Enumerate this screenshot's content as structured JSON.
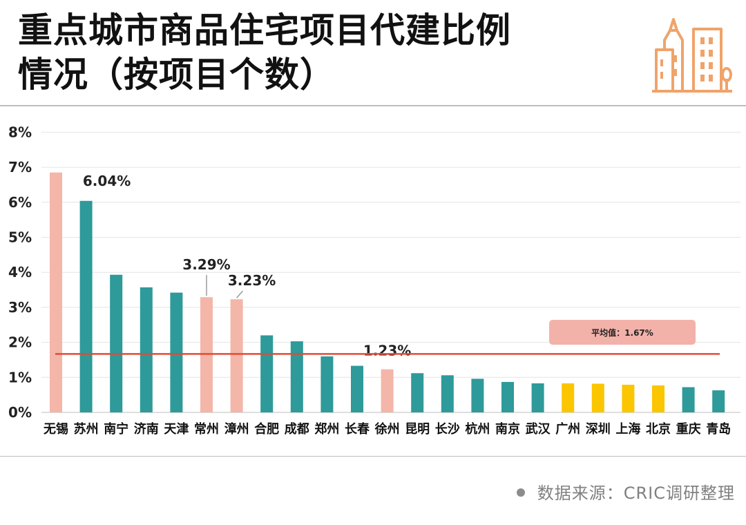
{
  "header": {
    "title_line1": "重点城市商品住宅项目代建比例",
    "title_line2": "情况（按项目个数）",
    "logo_icon": "city-buildings-icon"
  },
  "footer": {
    "source": "数据来源：CRIC调研整理"
  },
  "colors": {
    "teal": "#2e9a9a",
    "pink": "#f3b6a8",
    "yellow": "#fbc500",
    "avg_line": "#e34b33",
    "avg_box": "#f2b2aa",
    "logo": "#f0a36a"
  },
  "chart_data": {
    "type": "bar",
    "title": "重点城市商品住宅项目代建比例情况（按项目个数）",
    "xlabel": "",
    "ylabel": "",
    "ylim": [
      0,
      8
    ],
    "yticks": [
      "0%",
      "1%",
      "2%",
      "3%",
      "4%",
      "5%",
      "6%",
      "7%",
      "8%"
    ],
    "grid": true,
    "categories": [
      "无锡",
      "苏州",
      "南宁",
      "济南",
      "天津",
      "常州",
      "漳州",
      "合肥",
      "成都",
      "郑州",
      "长春",
      "徐州",
      "昆明",
      "长沙",
      "杭州",
      "南京",
      "武汉",
      "广州",
      "深圳",
      "上海",
      "北京",
      "重庆",
      "青岛"
    ],
    "values": [
      6.85,
      6.04,
      3.93,
      3.57,
      3.42,
      3.29,
      3.23,
      2.2,
      2.03,
      1.6,
      1.33,
      1.23,
      1.12,
      1.06,
      0.96,
      0.87,
      0.83,
      0.83,
      0.82,
      0.79,
      0.77,
      0.72,
      0.63
    ],
    "bar_colors": [
      "pink",
      "teal",
      "teal",
      "teal",
      "teal",
      "pink",
      "pink",
      "teal",
      "teal",
      "teal",
      "teal",
      "pink",
      "teal",
      "teal",
      "teal",
      "teal",
      "teal",
      "yellow",
      "yellow",
      "yellow",
      "yellow",
      "teal",
      "teal"
    ],
    "data_labels": [
      {
        "index": 1,
        "text": "6.04%"
      },
      {
        "index": 5,
        "text": "3.29%"
      },
      {
        "index": 6,
        "text": "3.23%"
      },
      {
        "index": 11,
        "text": "1.23%"
      }
    ],
    "reference_line": {
      "value": 1.67,
      "label": "平均值：1.67%"
    }
  }
}
